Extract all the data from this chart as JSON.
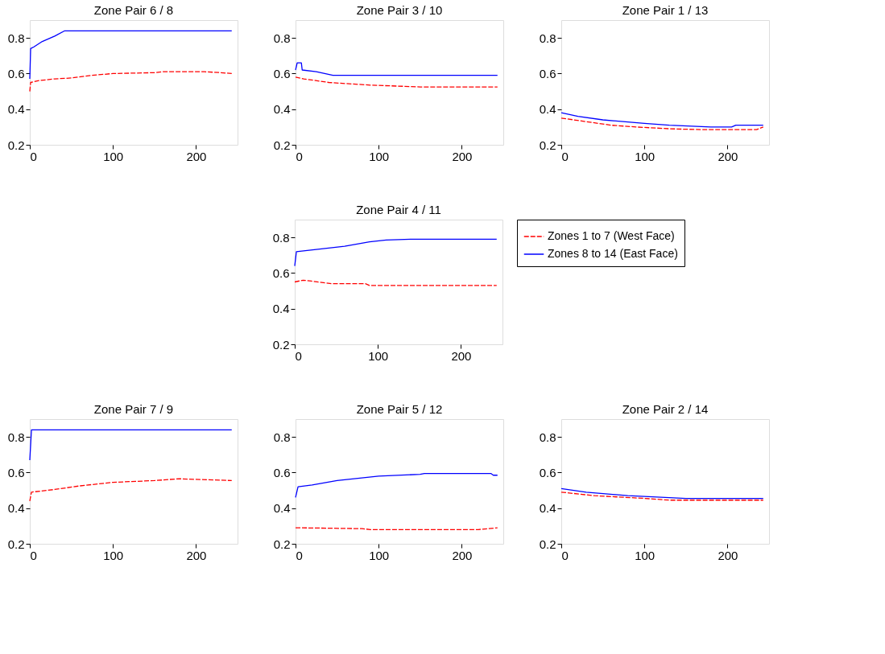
{
  "chart_data": [
    {
      "type": "line",
      "title": "Zone Pair 6 / 8",
      "xlim": [
        0,
        250
      ],
      "ylim": [
        0.2,
        0.9
      ],
      "xticks": [
        0,
        100,
        200
      ],
      "yticks": [
        0.2,
        0.4,
        0.6,
        0.8
      ],
      "grid": false,
      "legend": false,
      "series": [
        {
          "color": "#ff0000",
          "line_style": "dashed",
          "x": [
            0,
            1,
            10,
            30,
            50,
            75,
            100,
            150,
            160,
            210,
            230,
            243
          ],
          "values": [
            0.5,
            0.55,
            0.56,
            0.57,
            0.575,
            0.59,
            0.6,
            0.605,
            0.61,
            0.61,
            0.605,
            0.6
          ]
        },
        {
          "color": "#0000ff",
          "line_style": "solid",
          "x": [
            0,
            1,
            5,
            15,
            30,
            42,
            243
          ],
          "values": [
            0.57,
            0.74,
            0.75,
            0.78,
            0.81,
            0.84,
            0.84
          ]
        }
      ]
    },
    {
      "type": "line",
      "title": "Zone Pair 3 / 10",
      "xlim": [
        0,
        250
      ],
      "ylim": [
        0.2,
        0.9
      ],
      "xticks": [
        0,
        100,
        200
      ],
      "yticks": [
        0.2,
        0.4,
        0.6,
        0.8
      ],
      "grid": false,
      "legend": false,
      "series": [
        {
          "color": "#ff0000",
          "line_style": "dashed",
          "x": [
            0,
            10,
            40,
            90,
            150,
            243
          ],
          "values": [
            0.58,
            0.57,
            0.55,
            0.535,
            0.525,
            0.525
          ]
        },
        {
          "color": "#0000ff",
          "line_style": "solid",
          "x": [
            0,
            2,
            7,
            8,
            25,
            45,
            243
          ],
          "values": [
            0.62,
            0.66,
            0.66,
            0.62,
            0.61,
            0.59,
            0.59
          ]
        }
      ]
    },
    {
      "type": "line",
      "title": "Zone Pair 1 / 13",
      "xlim": [
        0,
        250
      ],
      "ylim": [
        0.2,
        0.9
      ],
      "xticks": [
        0,
        100,
        200
      ],
      "yticks": [
        0.2,
        0.4,
        0.6,
        0.8
      ],
      "grid": false,
      "legend": false,
      "series": [
        {
          "color": "#ff0000",
          "line_style": "dashed",
          "x": [
            0,
            30,
            60,
            90,
            130,
            170,
            235,
            243
          ],
          "values": [
            0.35,
            0.33,
            0.31,
            0.3,
            0.29,
            0.285,
            0.285,
            0.3
          ]
        },
        {
          "color": "#0000ff",
          "line_style": "solid",
          "x": [
            0,
            20,
            50,
            100,
            130,
            180,
            205,
            210,
            243
          ],
          "values": [
            0.38,
            0.36,
            0.34,
            0.32,
            0.31,
            0.3,
            0.3,
            0.31,
            0.31
          ]
        }
      ]
    },
    {
      "type": "line",
      "title": "Zone Pair 4 / 11",
      "xlim": [
        0,
        250
      ],
      "ylim": [
        0.2,
        0.9
      ],
      "xticks": [
        0,
        100,
        200
      ],
      "yticks": [
        0.2,
        0.4,
        0.6,
        0.8
      ],
      "grid": false,
      "legend": "right",
      "series": [
        {
          "name": "Zones 1 to 7 (West Face)",
          "color": "#ff0000",
          "line_style": "dashed",
          "x": [
            0,
            10,
            20,
            45,
            85,
            90,
            243
          ],
          "values": [
            0.55,
            0.56,
            0.555,
            0.54,
            0.54,
            0.53,
            0.53
          ]
        },
        {
          "name": "Zones 8 to 14 (East Face)",
          "color": "#0000ff",
          "line_style": "solid",
          "x": [
            0,
            2,
            30,
            60,
            90,
            110,
            140,
            243
          ],
          "values": [
            0.64,
            0.72,
            0.735,
            0.75,
            0.775,
            0.785,
            0.79,
            0.79
          ]
        }
      ]
    },
    {
      "type": "line",
      "title": "Zone Pair 7 / 9",
      "xlim": [
        0,
        250
      ],
      "ylim": [
        0.2,
        0.9
      ],
      "xticks": [
        0,
        100,
        200
      ],
      "yticks": [
        0.2,
        0.4,
        0.6,
        0.8
      ],
      "grid": false,
      "legend": false,
      "series": [
        {
          "color": "#ff0000",
          "line_style": "dashed",
          "x": [
            0,
            2,
            30,
            60,
            100,
            150,
            180,
            243
          ],
          "values": [
            0.44,
            0.49,
            0.505,
            0.525,
            0.545,
            0.555,
            0.565,
            0.555
          ]
        },
        {
          "color": "#0000ff",
          "line_style": "solid",
          "x": [
            0,
            2,
            243
          ],
          "values": [
            0.67,
            0.84,
            0.84
          ]
        }
      ]
    },
    {
      "type": "line",
      "title": "Zone Pair 5 / 12",
      "xlim": [
        0,
        250
      ],
      "ylim": [
        0.2,
        0.9
      ],
      "xticks": [
        0,
        100,
        200
      ],
      "yticks": [
        0.2,
        0.4,
        0.6,
        0.8
      ],
      "grid": false,
      "legend": false,
      "series": [
        {
          "color": "#ff0000",
          "line_style": "dashed",
          "x": [
            0,
            80,
            90,
            220,
            243
          ],
          "values": [
            0.29,
            0.285,
            0.28,
            0.28,
            0.29
          ]
        },
        {
          "color": "#0000ff",
          "line_style": "solid",
          "x": [
            0,
            3,
            20,
            50,
            100,
            150,
            155,
            235,
            238,
            243
          ],
          "values": [
            0.46,
            0.52,
            0.53,
            0.555,
            0.58,
            0.59,
            0.595,
            0.595,
            0.585,
            0.585
          ]
        }
      ]
    },
    {
      "type": "line",
      "title": "Zone Pair 2 / 14",
      "xlim": [
        0,
        250
      ],
      "ylim": [
        0.2,
        0.9
      ],
      "xticks": [
        0,
        100,
        200
      ],
      "yticks": [
        0.2,
        0.4,
        0.6,
        0.8
      ],
      "grid": false,
      "legend": false,
      "series": [
        {
          "color": "#ff0000",
          "line_style": "dashed",
          "x": [
            0,
            40,
            100,
            130,
            243
          ],
          "values": [
            0.49,
            0.47,
            0.455,
            0.445,
            0.445
          ]
        },
        {
          "color": "#0000ff",
          "line_style": "solid",
          "x": [
            0,
            30,
            80,
            150,
            243
          ],
          "values": [
            0.51,
            0.49,
            0.47,
            0.455,
            0.455
          ]
        }
      ]
    }
  ]
}
